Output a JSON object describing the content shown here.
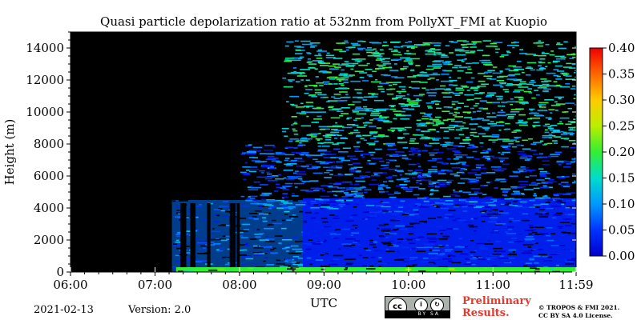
{
  "chart_data": {
    "type": "heatmap",
    "title": "Quasi particle depolarization ratio at 532nm from PollyXT_FMI at Kuopio",
    "xlabel": "UTC",
    "ylabel": "Height (m)",
    "x_range": [
      "06:00",
      "11:59"
    ],
    "y_range": [
      0,
      15000
    ],
    "x_ticks": [
      "06:00",
      "07:00",
      "08:00",
      "09:00",
      "10:00",
      "11:00",
      "11:59"
    ],
    "y_ticks": [
      0,
      2000,
      4000,
      6000,
      8000,
      10000,
      12000,
      14000
    ],
    "colorbar": {
      "range": [
        0.0,
        0.4
      ],
      "ticks": [
        "0.00",
        "0.05",
        "0.10",
        "0.15",
        "0.20",
        "0.25",
        "0.30",
        "0.35",
        "0.40"
      ],
      "colormap": [
        "#0000cc",
        "#0033ff",
        "#0099ff",
        "#00ddcc",
        "#33ee33",
        "#bbee00",
        "#ffcc00",
        "#ff6600",
        "#ee0000"
      ]
    },
    "no_data_color": "#000000",
    "regions": [
      {
        "time": [
          "06:00",
          "07:12"
        ],
        "height": [
          0,
          15000
        ],
        "value": null
      },
      {
        "time": [
          "07:12",
          "08:45"
        ],
        "height": [
          0,
          4500
        ],
        "value": 0.08,
        "note": "intermittent columns"
      },
      {
        "time": [
          "08:45",
          "11:59"
        ],
        "height": [
          0,
          4600
        ],
        "value": 0.03
      },
      {
        "time": [
          "07:15",
          "11:59"
        ],
        "height": [
          0,
          300
        ],
        "value": 0.2
      },
      {
        "time": [
          "08:00",
          "11:59"
        ],
        "height": [
          4000,
          8000
        ],
        "value": 0.07
      },
      {
        "time": [
          "08:30",
          "11:59"
        ],
        "height": [
          8000,
          14500
        ],
        "value": 0.15
      }
    ]
  },
  "footer": {
    "date": "2021-02-13",
    "version": "Version: 2.0",
    "preliminary": [
      "Preliminary",
      "Results."
    ],
    "copyright": [
      "© TROPOS & FMI 2021.",
      "CC BY SA 4.0 License."
    ],
    "cc_badge": "BY   SA"
  },
  "colors": {
    "background": "#ffffff",
    "preliminary_text": "#e8372c"
  }
}
